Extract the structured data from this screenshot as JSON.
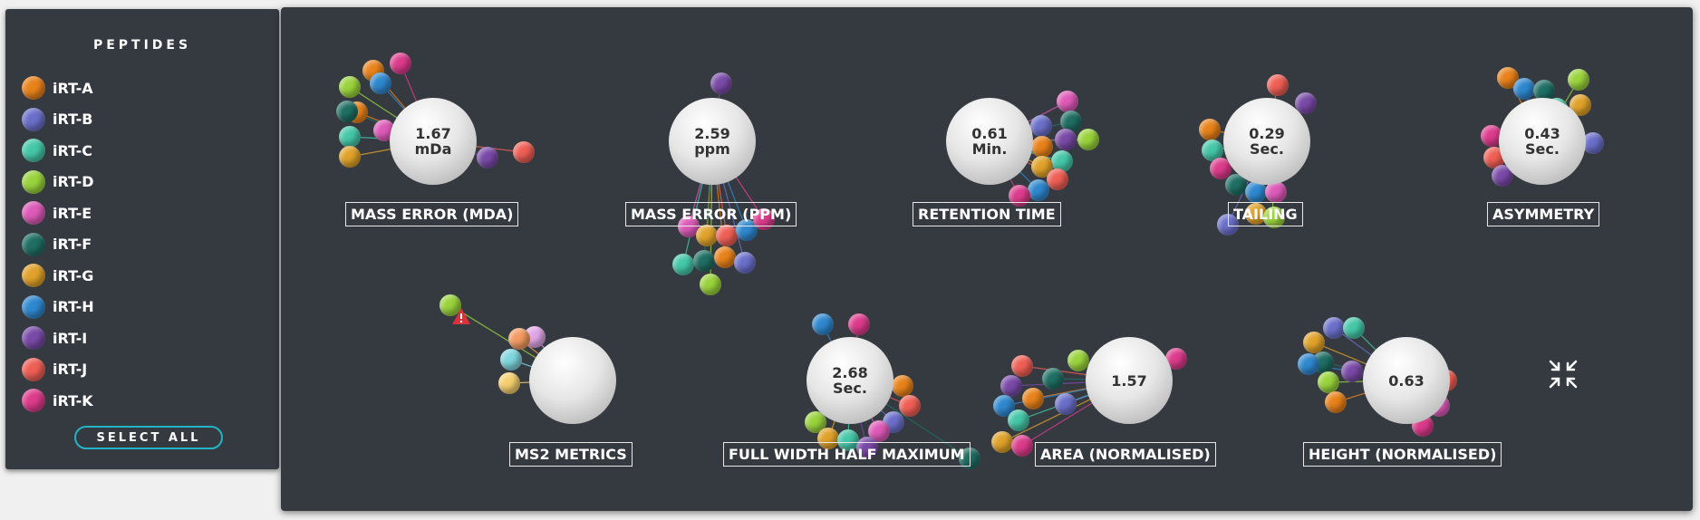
{
  "sidebar": {
    "title": "PEPTIDES",
    "select_all_label": "SELECT ALL",
    "peptides": [
      {
        "label": "iRT-A",
        "color": "#e8821a"
      },
      {
        "label": "iRT-B",
        "color": "#6b6fc9"
      },
      {
        "label": "iRT-C",
        "color": "#45c7a8"
      },
      {
        "label": "iRT-D",
        "color": "#99d33c"
      },
      {
        "label": "iRT-E",
        "color": "#dd5ab8"
      },
      {
        "label": "iRT-F",
        "color": "#1f6f64"
      },
      {
        "label": "iRT-G",
        "color": "#e0a22a"
      },
      {
        "label": "iRT-H",
        "color": "#2f88cf"
      },
      {
        "label": "iRT-I",
        "color": "#7a4aa8"
      },
      {
        "label": "iRT-J",
        "color": "#ef5f55"
      },
      {
        "label": "iRT-K",
        "color": "#dd3b8c"
      }
    ]
  },
  "metrics": [
    {
      "label": "MASS ERROR (MDA)",
      "value_line1": "1.67",
      "value_line2": "mDa"
    },
    {
      "label": "MASS ERROR (PPM)",
      "value_line1": "2.59",
      "value_line2": "ppm"
    },
    {
      "label": "RETENTION TIME",
      "value_line1": "0.61",
      "value_line2": "Min."
    },
    {
      "label": "TAILING",
      "value_line1": "0.29",
      "value_line2": "Sec."
    },
    {
      "label": "ASYMMETRY",
      "value_line1": "0.43",
      "value_line2": "Sec."
    },
    {
      "label": "MS2 METRICS",
      "value_line1": "",
      "value_line2": ""
    },
    {
      "label": "FULL WIDTH HALF MAXIMUM",
      "value_line1": "2.68",
      "value_line2": "Sec."
    },
    {
      "label": "AREA (NORMALISED)",
      "value_line1": "1.57",
      "value_line2": ""
    },
    {
      "label": "HEIGHT (NORMALISED)",
      "value_line1": "0.63",
      "value_line2": ""
    }
  ],
  "icons": {
    "warning": "warning-icon",
    "collapse": "collapse-icon"
  }
}
